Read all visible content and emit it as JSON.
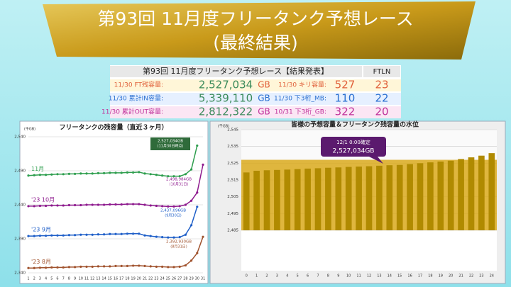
{
  "header": {
    "title": "第93回 11月度フリータンク予想レース",
    "subtitle": "(最終結果)"
  },
  "table": {
    "title": "第93回 11月度フリータンク予想レース【結果発表】",
    "ftln_header": "FTLN",
    "rows": [
      [
        "11/30 FT残容量:",
        "2,527,034",
        "GB",
        "11/30 キリ容量:",
        "527",
        "23"
      ],
      [
        "11/30 累計IN容量:",
        "5,339,110",
        "GB",
        "11/30 下3桁_MB:",
        "110",
        "22"
      ],
      [
        "11/30 累計OUT容量:",
        "2,812,322",
        "GB",
        "10/31 下3桁_GB:",
        "322",
        "20"
      ]
    ]
  },
  "chart_data": [
    {
      "type": "line",
      "title": "フリータンクの残容量（直近３ヶ月）",
      "y_unit": "(千GB)",
      "x": [
        1,
        2,
        3,
        4,
        5,
        6,
        7,
        8,
        9,
        10,
        11,
        12,
        13,
        14,
        15,
        16,
        17,
        18,
        19,
        20,
        21,
        22,
        23,
        24,
        25,
        26,
        27,
        28,
        29,
        30,
        31
      ],
      "xlim": [
        1,
        31
      ],
      "ylim": [
        2340,
        2540
      ],
      "yticks": [
        {
          "value": 2340,
          "label": "2,340"
        },
        {
          "value": 2390,
          "label": "2,390"
        },
        {
          "value": 2440,
          "label": "2,440"
        },
        {
          "value": 2490,
          "label": "2,490"
        },
        {
          "value": 2540,
          "label": "2,540"
        }
      ],
      "grid": true,
      "series": [
        {
          "name": "11月",
          "color": "#2e9e4e",
          "values": [
            2483,
            2483.5,
            2484,
            2484,
            2484.5,
            2485,
            2485,
            2485.5,
            2485.5,
            2486,
            2486,
            2486,
            2486.5,
            2486.5,
            2487,
            2487,
            2487,
            2487.5,
            2487.5,
            2488,
            2486,
            2485,
            2484,
            2483,
            2482,
            2482,
            2482,
            2485,
            2492,
            2527.034,
            null
          ]
        },
        {
          "name": "'23 10月",
          "color": "#8e1a8e",
          "values": [
            2438,
            2438,
            2438.5,
            2438.5,
            2439,
            2439,
            2439,
            2439.5,
            2439.5,
            2439.5,
            2440,
            2440,
            2440,
            2440,
            2440.5,
            2440.5,
            2440.5,
            2441,
            2441,
            2441,
            2440,
            2439,
            2438.5,
            2438,
            2437.5,
            2437.5,
            2438,
            2440,
            2446,
            2458,
            2498.984
          ]
        },
        {
          "name": "'23 9月",
          "color": "#1f5fc8",
          "values": [
            2394,
            2394,
            2394.5,
            2394.5,
            2395,
            2395,
            2395,
            2395.5,
            2395.5,
            2396,
            2396,
            2396,
            2396.5,
            2396.5,
            2397,
            2397,
            2397,
            2397.5,
            2397.5,
            2397.5,
            2395,
            2394,
            2393,
            2392.5,
            2392,
            2392,
            2392.5,
            2396,
            2410,
            2437.096,
            null
          ]
        },
        {
          "name": "'23 8月",
          "color": "#a0522d",
          "values": [
            2347,
            2347,
            2347.5,
            2347.5,
            2348,
            2348,
            2348,
            2348.5,
            2348.5,
            2349,
            2349,
            2349,
            2349.5,
            2349.5,
            2349.5,
            2350,
            2350,
            2350,
            2350.5,
            2350.5,
            2350,
            2349.5,
            2349,
            2349,
            2348.5,
            2348.5,
            2349,
            2351,
            2358,
            2369,
            2392.93
          ]
        }
      ],
      "annotations": [
        {
          "text": "2,527,034GB",
          "note": "(11月30日時点)"
        },
        {
          "text": "2,498,984GB",
          "note": "(10月31日)"
        },
        {
          "text": "2,437,096GB",
          "note": "(9月30日)"
        },
        {
          "text": "2,392,930GB",
          "note": "(8月31日)"
        }
      ]
    },
    {
      "type": "bar",
      "title": "皆様の予想容量＆フリータンク残容量の水位",
      "y_unit": "(千GB)",
      "categories": [
        "0",
        "1",
        "2",
        "3",
        "4",
        "5",
        "6",
        "7",
        "8",
        "9",
        "10",
        "11",
        "12",
        "13",
        "14",
        "15",
        "16",
        "17",
        "18",
        "19",
        "20",
        "21",
        "22",
        "23",
        "24"
      ],
      "values": [
        2519.5,
        2520.5,
        2520.8,
        2521,
        2521.2,
        2521.5,
        2521.8,
        2522,
        2522.3,
        2522.5,
        2522.8,
        2523,
        2523.2,
        2523.5,
        2523.8,
        2524,
        2524.5,
        2525,
        2525.5,
        2526,
        2526.5,
        2527.5,
        2528.5,
        2529.5,
        2531
      ],
      "color": "#b08a00",
      "level": {
        "value": 2527.034,
        "color": "#d9a91c"
      },
      "callout": {
        "title": "12/1 0:00確定",
        "text": "2,527,034GB",
        "color": "#5b1a6e"
      },
      "ylim": [
        2485,
        2545
      ],
      "yticks": [
        {
          "value": 2485,
          "label": "2,485"
        },
        {
          "value": 2495,
          "label": "2,495"
        },
        {
          "value": 2505,
          "label": "2,505"
        },
        {
          "value": 2515,
          "label": "2,515"
        },
        {
          "value": 2525,
          "label": "2,525"
        },
        {
          "value": 2535,
          "label": "2,535"
        },
        {
          "value": 2545,
          "label": "2,545"
        }
      ],
      "grid": true
    }
  ]
}
